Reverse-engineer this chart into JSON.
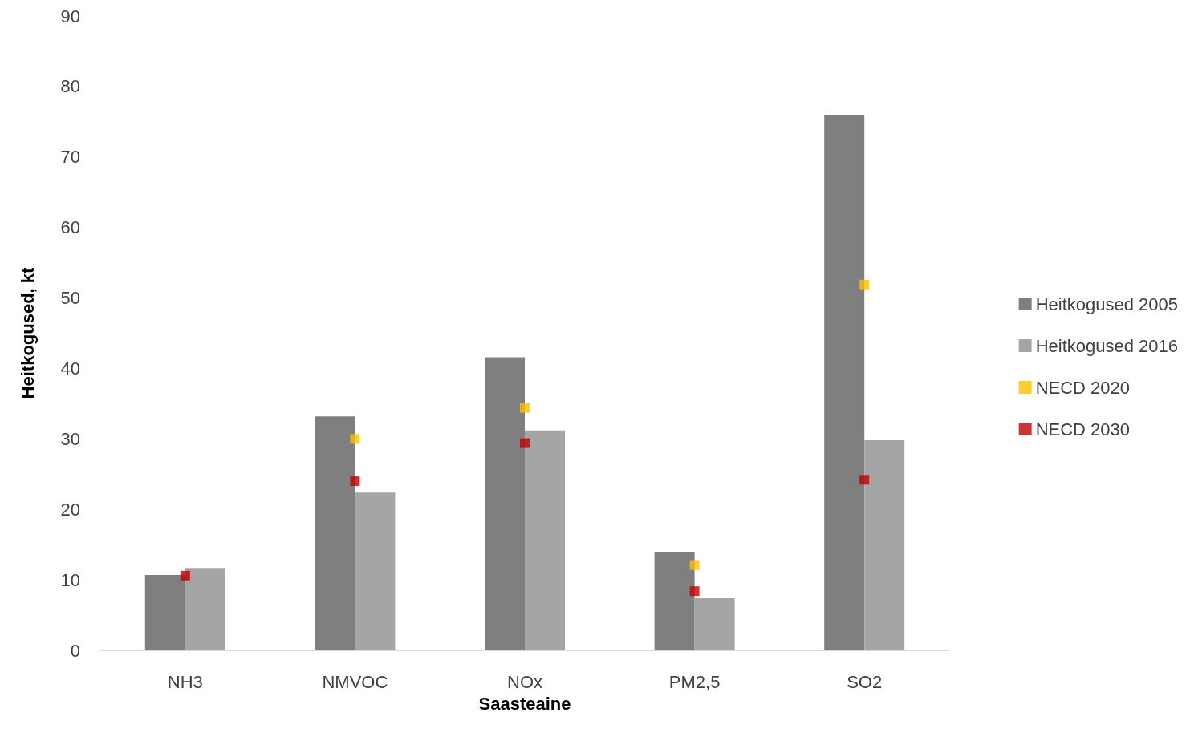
{
  "chart_data": {
    "type": "bar",
    "xlabel": "Saasteaine",
    "ylabel": "Heitkogused, kt",
    "categories": [
      "NH3",
      "NMVOC",
      "NOx",
      "PM2,5",
      "SO2"
    ],
    "series": [
      {
        "name": "Heitkogused 2005",
        "color": "#7f7f7f",
        "values": [
          10.7,
          33.2,
          41.6,
          14.0,
          76.0
        ]
      },
      {
        "name": "Heitkogused 2016",
        "color": "#a5a5a5",
        "values": [
          11.7,
          22.4,
          31.2,
          7.4,
          29.8
        ]
      },
      {
        "name": "NECD 2020",
        "type": "scatter",
        "marker": "square",
        "color": "#ffc000",
        "x": [
          "NH3",
          "NMVOC",
          "NOx",
          "PM2,5",
          "SO2"
        ],
        "values": [
          null,
          30.0,
          34.4,
          12.1,
          51.9
        ]
      },
      {
        "name": "NECD 2030",
        "type": "scatter",
        "marker": "square",
        "color": "#c00000",
        "x": [
          "NH3",
          "NMVOC",
          "NOx",
          "PM2,5",
          "SO2"
        ],
        "values": [
          10.6,
          24.0,
          29.4,
          8.4,
          24.2
        ]
      }
    ],
    "ylim": [
      0,
      90
    ],
    "yticks": [
      0,
      10,
      20,
      30,
      40,
      50,
      60,
      70,
      80,
      90
    ],
    "grid": false,
    "legend": "right"
  }
}
